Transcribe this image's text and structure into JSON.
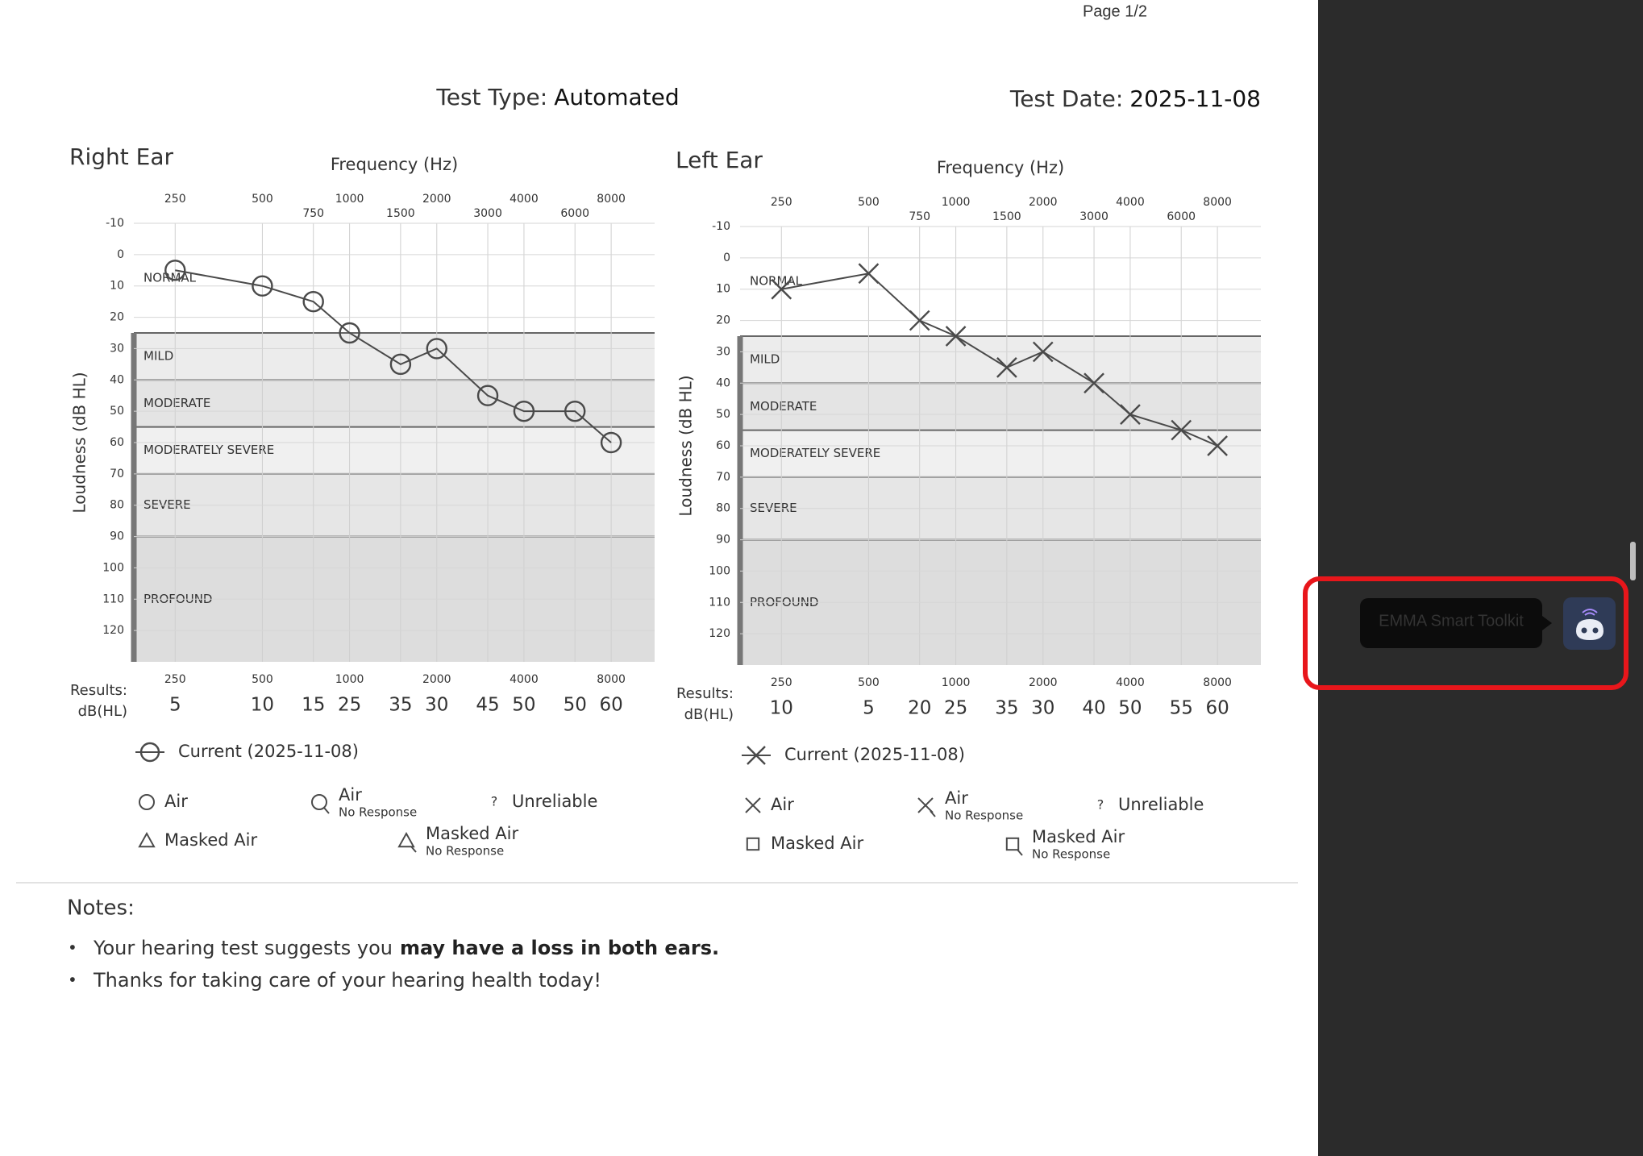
{
  "page_indicator": "Page 1/2",
  "test_type": {
    "label": "Test Type:",
    "value": "Automated"
  },
  "test_date": {
    "label": "Test Date:",
    "value": "2025-11-08"
  },
  "chart_data": [
    {
      "type": "line",
      "title": "Right Ear",
      "x_label": "Frequency (Hz)",
      "y_label": "Loudness (dB HL)",
      "x": [
        250,
        500,
        750,
        1000,
        1500,
        2000,
        3000,
        4000,
        6000,
        8000
      ],
      "series": [
        {
          "name": "Current (2025-11-08)",
          "color": "#4a4a4a",
          "marker": "circle",
          "values": [
            5,
            10,
            15,
            25,
            35,
            30,
            45,
            50,
            50,
            60
          ]
        }
      ],
      "xlim": [
        180,
        11300
      ],
      "log_x": true,
      "xticks": [
        250,
        500,
        750,
        1000,
        1500,
        2000,
        3000,
        4000,
        6000,
        8000
      ],
      "ylim": [
        -10,
        130
      ],
      "y_reversed": true,
      "yticks": [
        -10,
        0,
        10,
        20,
        30,
        40,
        50,
        60,
        70,
        80,
        90,
        100,
        110,
        120
      ],
      "grid": true,
      "bands": [
        {
          "label": "NORMAL",
          "from": -10,
          "color": "#ffffff"
        },
        {
          "label": "MILD",
          "from": 25,
          "color": "#ececec"
        },
        {
          "label": "MODERATE",
          "from": 40,
          "color": "#e4e4e4"
        },
        {
          "label": "MODERATELY SEVERE",
          "from": 55,
          "color": "#f0f0f0"
        },
        {
          "label": "SEVERE",
          "from": 70,
          "color": "#e6e6e6"
        },
        {
          "label": "PROFOUND",
          "from": 90,
          "color": "#dddddd"
        }
      ],
      "results_label": [
        "Results:",
        "dB(HL)"
      ],
      "symbol_key": [
        {
          "marker": "circle",
          "label": "Air"
        },
        {
          "marker": "circle",
          "no_response": true,
          "label": "Air",
          "sublabel": "No Response"
        },
        {
          "mark_text": "?",
          "label": "Unreliable"
        },
        {
          "marker": "triangle",
          "label": "Masked Air"
        },
        {
          "marker": "triangle",
          "no_response": true,
          "label": "Masked Air",
          "sublabel": "No Response"
        }
      ]
    },
    {
      "type": "line",
      "title": "Left Ear",
      "x_label": "Frequency (Hz)",
      "y_label": "Loudness (dB HL)",
      "x": [
        250,
        500,
        750,
        1000,
        1500,
        2000,
        3000,
        4000,
        6000,
        8000
      ],
      "series": [
        {
          "name": "Current (2025-11-08)",
          "color": "#4a4a4a",
          "marker": "x",
          "values": [
            10,
            5,
            20,
            25,
            35,
            30,
            40,
            50,
            55,
            60
          ]
        }
      ],
      "xlim": [
        180,
        11300
      ],
      "log_x": true,
      "xticks": [
        250,
        500,
        750,
        1000,
        1500,
        2000,
        3000,
        4000,
        6000,
        8000
      ],
      "ylim": [
        -10,
        130
      ],
      "y_reversed": true,
      "yticks": [
        -10,
        0,
        10,
        20,
        30,
        40,
        50,
        60,
        70,
        80,
        90,
        100,
        110,
        120
      ],
      "grid": true,
      "bands": [
        {
          "label": "NORMAL",
          "from": -10,
          "color": "#ffffff"
        },
        {
          "label": "MILD",
          "from": 25,
          "color": "#ececec"
        },
        {
          "label": "MODERATE",
          "from": 40,
          "color": "#e4e4e4"
        },
        {
          "label": "MODERATELY SEVERE",
          "from": 55,
          "color": "#f0f0f0"
        },
        {
          "label": "SEVERE",
          "from": 70,
          "color": "#e6e6e6"
        },
        {
          "label": "PROFOUND",
          "from": 90,
          "color": "#dddddd"
        }
      ],
      "results_label": [
        "Results:",
        "dB(HL)"
      ],
      "symbol_key": [
        {
          "marker": "x",
          "label": "Air"
        },
        {
          "marker": "x",
          "no_response": true,
          "label": "Air",
          "sublabel": "No Response"
        },
        {
          "mark_text": "?",
          "label": "Unreliable"
        },
        {
          "marker": "square",
          "label": "Masked Air"
        },
        {
          "marker": "square",
          "no_response": true,
          "label": "Masked Air",
          "sublabel": "No Response"
        }
      ]
    }
  ],
  "notes": {
    "heading": "Notes:",
    "items": [
      {
        "text": "Your hearing test suggests you",
        "bold": "may have a loss in both ears."
      },
      {
        "text": "Thanks for taking care of your hearing health today!"
      }
    ]
  },
  "toolkit_tooltip": "EMMA Smart Toolkit"
}
